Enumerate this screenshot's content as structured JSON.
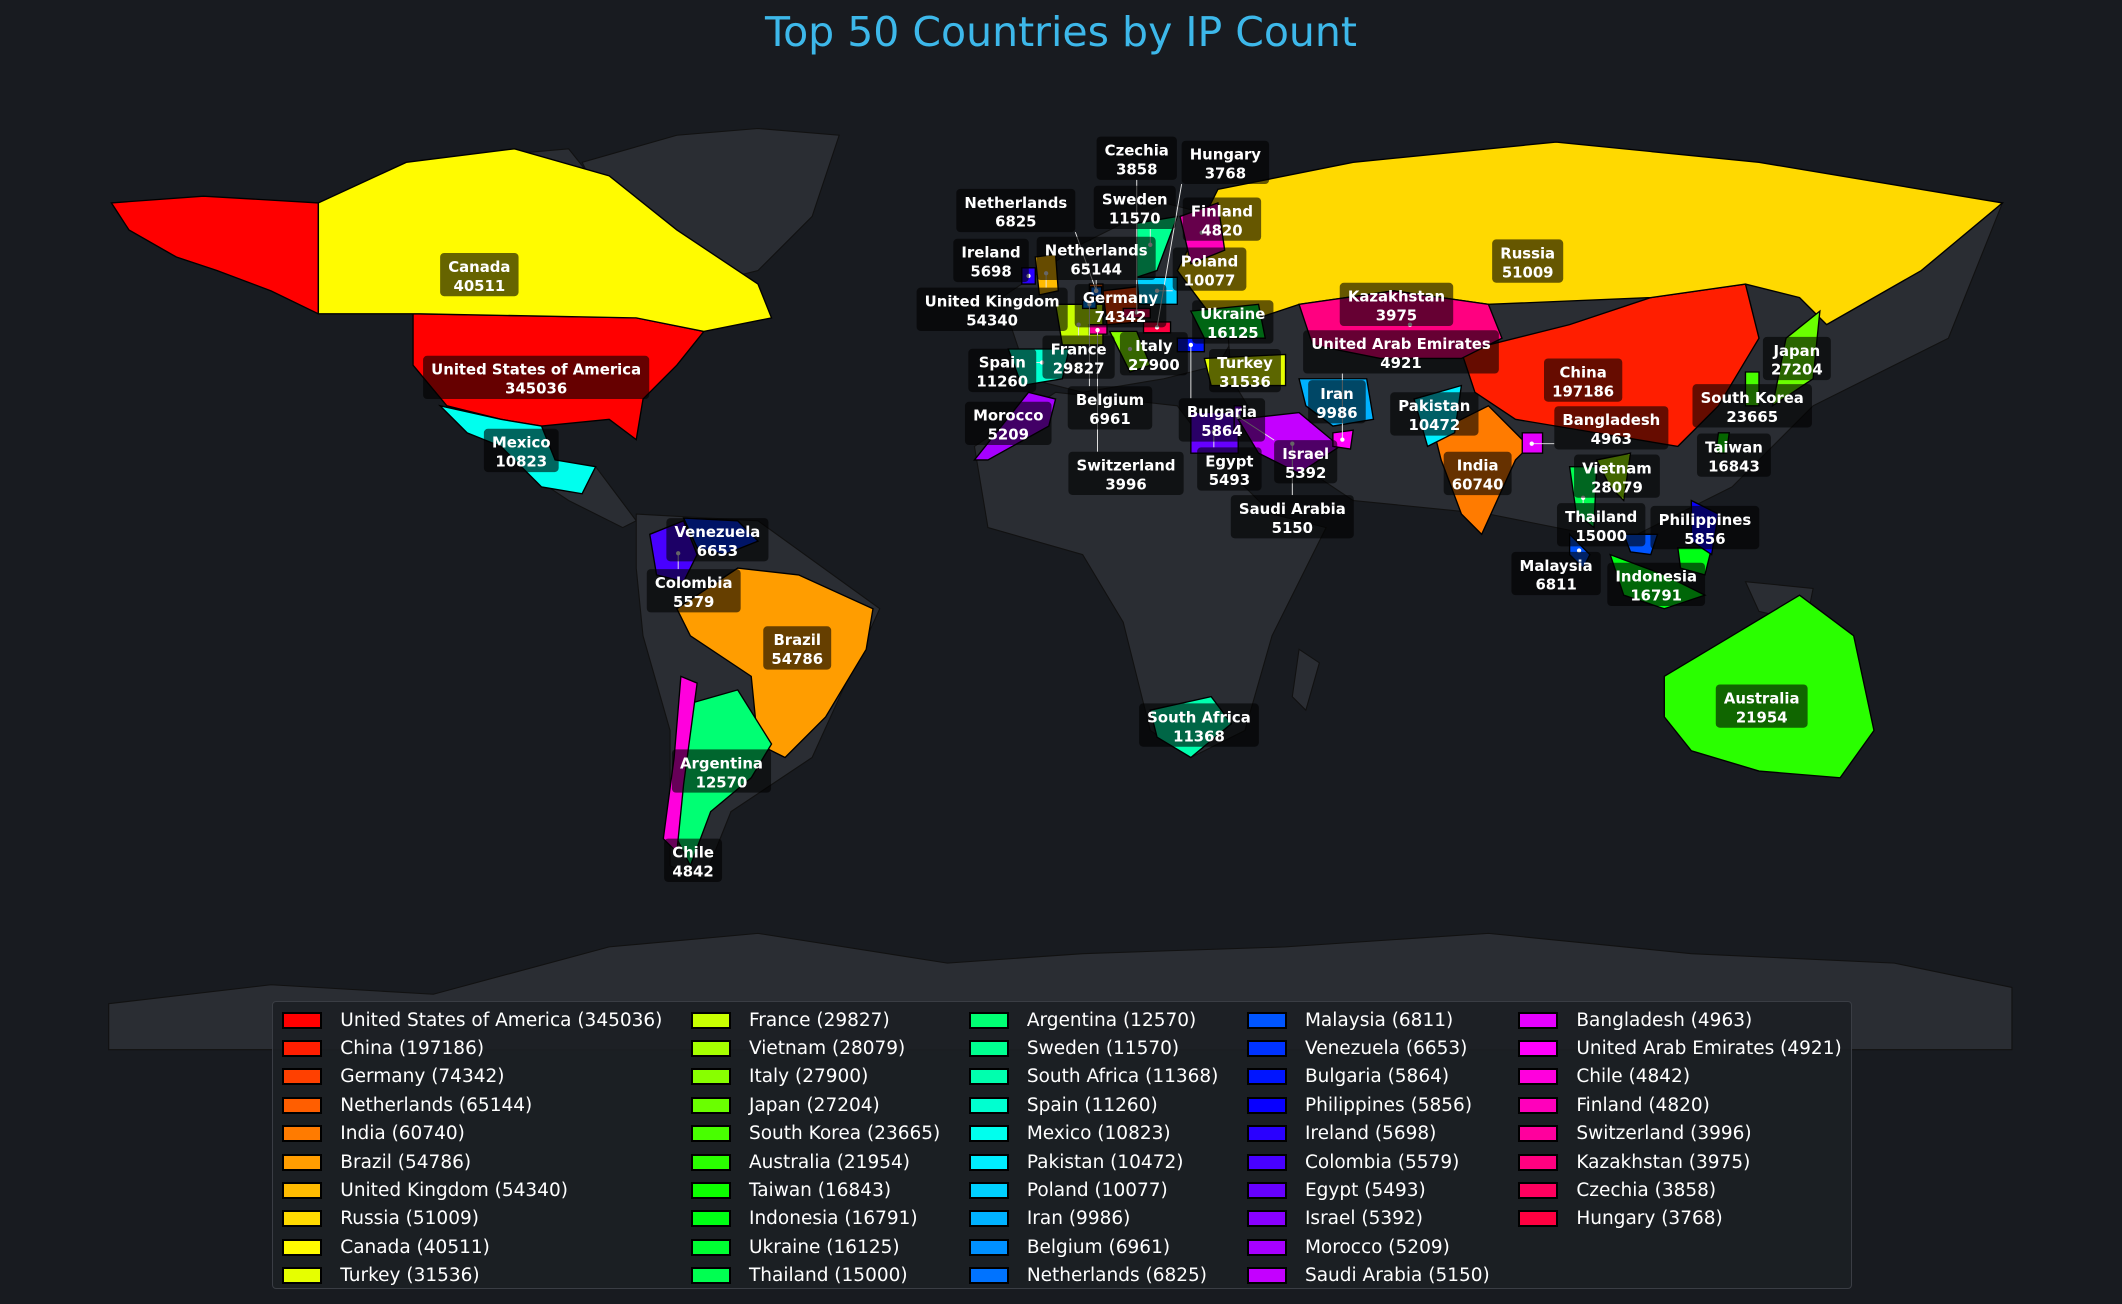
{
  "title": "Top 50 Countries by IP Count",
  "chart_data": {
    "type": "choropleth",
    "title": "Top 50 Countries by IP Count",
    "legend_placement": "bottom",
    "colormap": "gist_rainbow",
    "countries": [
      {
        "name": "United States of America",
        "value": 345036,
        "color": "hsl(0,100%,50%)"
      },
      {
        "name": "China",
        "value": 197186,
        "color": "hsl(7,100%,50%)"
      },
      {
        "name": "Germany",
        "value": 74342,
        "color": "hsl(15,100%,50%)"
      },
      {
        "name": "Netherlands",
        "value": 65144,
        "color": "hsl(22,100%,50%)"
      },
      {
        "name": "India",
        "value": 60740,
        "color": "hsl(29,100%,50%)"
      },
      {
        "name": "Brazil",
        "value": 54786,
        "color": "hsl(37,100%,50%)"
      },
      {
        "name": "United Kingdom",
        "value": 54340,
        "color": "hsl(44,100%,50%)"
      },
      {
        "name": "Russia",
        "value": 51009,
        "color": "hsl(51,100%,50%)"
      },
      {
        "name": "Canada",
        "value": 40511,
        "color": "hsl(59,100%,50%)"
      },
      {
        "name": "Turkey",
        "value": 31536,
        "color": "hsl(66,100%,50%)"
      },
      {
        "name": "France",
        "value": 29827,
        "color": "hsl(73,100%,50%)"
      },
      {
        "name": "Vietnam",
        "value": 28079,
        "color": "hsl(81,100%,50%)"
      },
      {
        "name": "Italy",
        "value": 27900,
        "color": "hsl(88,100%,50%)"
      },
      {
        "name": "Japan",
        "value": 27204,
        "color": "hsl(95,100%,50%)"
      },
      {
        "name": "South Korea",
        "value": 23665,
        "color": "hsl(103,100%,50%)"
      },
      {
        "name": "Australia",
        "value": 21954,
        "color": "hsl(110,100%,50%)"
      },
      {
        "name": "Taiwan",
        "value": 16843,
        "color": "hsl(117,100%,50%)"
      },
      {
        "name": "Indonesia",
        "value": 16791,
        "color": "hsl(125,100%,50%)"
      },
      {
        "name": "Ukraine",
        "value": 16125,
        "color": "hsl(132,100%,50%)"
      },
      {
        "name": "Thailand",
        "value": 15000,
        "color": "hsl(139,100%,50%)"
      },
      {
        "name": "Argentina",
        "value": 12570,
        "color": "hsl(147,100%,50%)"
      },
      {
        "name": "Sweden",
        "value": 11570,
        "color": "hsl(154,100%,50%)"
      },
      {
        "name": "South Africa",
        "value": 11368,
        "color": "hsl(161,100%,50%)"
      },
      {
        "name": "Spain",
        "value": 11260,
        "color": "hsl(169,100%,50%)"
      },
      {
        "name": "Mexico",
        "value": 10823,
        "color": "hsl(176,100%,50%)"
      },
      {
        "name": "Pakistan",
        "value": 10472,
        "color": "hsl(184,100%,50%)"
      },
      {
        "name": "Poland",
        "value": 10077,
        "color": "hsl(191,100%,50%)"
      },
      {
        "name": "Iran",
        "value": 9986,
        "color": "hsl(198,100%,50%)"
      },
      {
        "name": "Belgium",
        "value": 6961,
        "color": "hsl(206,100%,50%)"
      },
      {
        "name": "Netherlands",
        "value": 6825,
        "color": "hsl(213,100%,50%)"
      },
      {
        "name": "Malaysia",
        "value": 6811,
        "color": "hsl(220,100%,50%)"
      },
      {
        "name": "Venezuela",
        "value": 6653,
        "color": "hsl(228,100%,50%)"
      },
      {
        "name": "Bulgaria",
        "value": 5864,
        "color": "hsl(235,100%,50%)"
      },
      {
        "name": "Philippines",
        "value": 5856,
        "color": "hsl(242,100%,50%)"
      },
      {
        "name": "Ireland",
        "value": 5698,
        "color": "hsl(250,100%,50%)"
      },
      {
        "name": "Colombia",
        "value": 5579,
        "color": "hsl(257,100%,50%)"
      },
      {
        "name": "Egypt",
        "value": 5493,
        "color": "hsl(264,100%,50%)"
      },
      {
        "name": "Israel",
        "value": 5392,
        "color": "hsl(272,100%,50%)"
      },
      {
        "name": "Morocco",
        "value": 5209,
        "color": "hsl(279,100%,50%)"
      },
      {
        "name": "Saudi Arabia",
        "value": 5150,
        "color": "hsl(286,100%,50%)"
      },
      {
        "name": "Bangladesh",
        "value": 4963,
        "color": "hsl(294,100%,50%)"
      },
      {
        "name": "United Arab Emirates",
        "value": 4921,
        "color": "hsl(301,100%,50%)"
      },
      {
        "name": "Chile",
        "value": 4842,
        "color": "hsl(308,100%,50%)"
      },
      {
        "name": "Finland",
        "value": 4820,
        "color": "hsl(316,100%,50%)"
      },
      {
        "name": "Switzerland",
        "value": 3996,
        "color": "hsl(323,100%,50%)"
      },
      {
        "name": "Kazakhstan",
        "value": 3975,
        "color": "hsl(330,100%,50%)"
      },
      {
        "name": "Czechia",
        "value": 3858,
        "color": "hsl(338,100%,50%)"
      },
      {
        "name": "Hungary",
        "value": 3768,
        "color": "hsl(345,100%,50%)"
      }
    ],
    "land_color": "#2a2d33",
    "background_color": "#181b20"
  }
}
